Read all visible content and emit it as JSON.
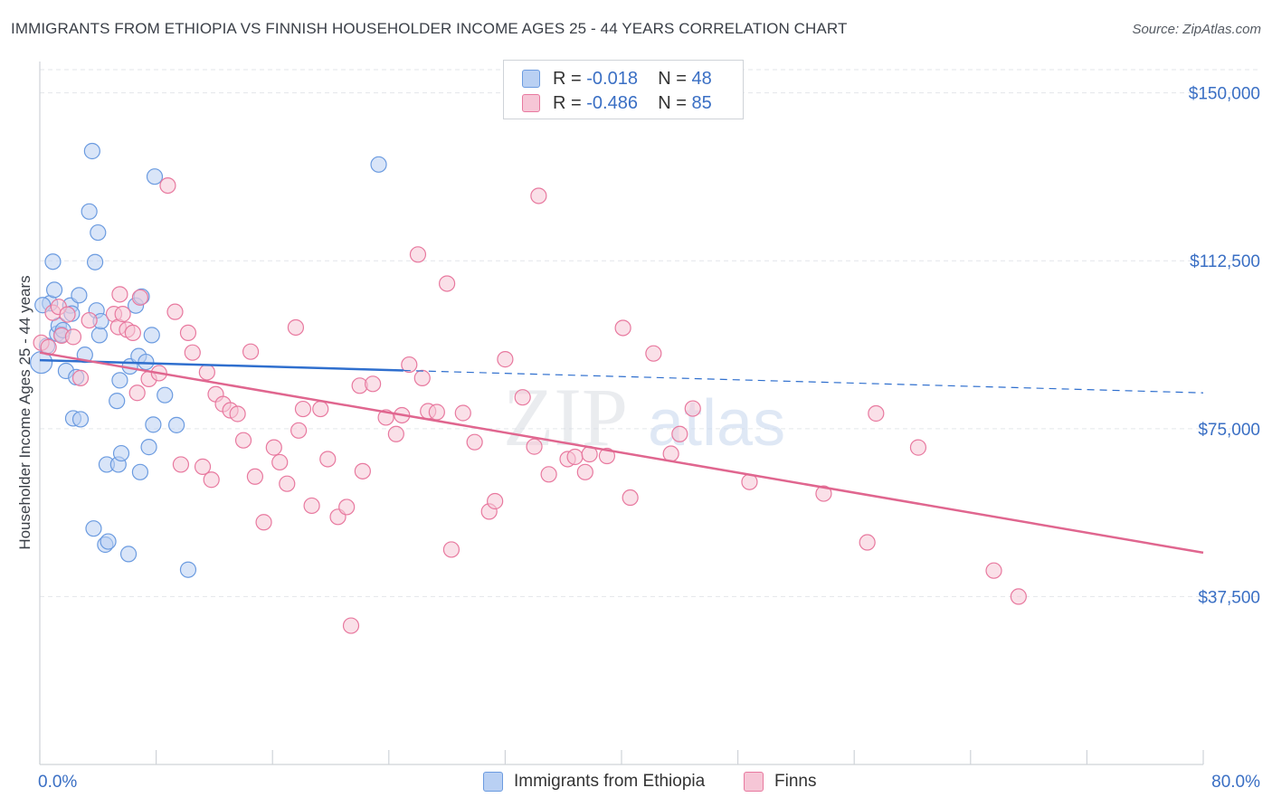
{
  "title": "IMMIGRANTS FROM ETHIOPIA VS FINNISH HOUSEHOLDER INCOME AGES 25 - 44 YEARS CORRELATION CHART",
  "source": "Source: ZipAtlas.com",
  "watermark": {
    "zip": "ZIP",
    "atlas": "atlas"
  },
  "legend": {
    "rows": [
      {
        "r_label": "R =",
        "r_value": "-0.018",
        "n_label": "N =",
        "n_value": "48"
      },
      {
        "r_label": "R =",
        "r_value": "-0.486",
        "n_label": "N =",
        "n_value": "85"
      }
    ],
    "bottom": [
      {
        "label": "Immigrants from Ethiopia"
      },
      {
        "label": "Finns"
      }
    ]
  },
  "chart_data": {
    "type": "scatter",
    "title": "IMMIGRANTS FROM ETHIOPIA VS FINNISH HOUSEHOLDER INCOME AGES 25 - 44 YEARS CORRELATION CHART",
    "xlabel": "",
    "ylabel": "Householder Income Ages 25 - 44 years",
    "xlim": [
      0,
      80
    ],
    "ylim": [
      0,
      157000
    ],
    "x_tick_labels": {
      "min": "0.0%",
      "max": "80.0%"
    },
    "y_ticks": [
      {
        "value": 150000,
        "label": "$150,000"
      },
      {
        "value": 112500,
        "label": "$112,500"
      },
      {
        "value": 75000,
        "label": "$75,000"
      },
      {
        "value": 37500,
        "label": "$37,500"
      }
    ],
    "grid": true,
    "series": [
      {
        "name": "Immigrants from Ethiopia",
        "color": "#6b9be0",
        "fill": "#b9d0f3",
        "R": -0.018,
        "N": 48,
        "trend": {
          "x0": 0.0,
          "y0": 90300,
          "x1": 25.0,
          "y1": 88000,
          "dash_x1": 80.0,
          "dash_y1": 83000
        },
        "points": [
          [
            0.1,
            89.8
          ],
          [
            0.5,
            93.5
          ],
          [
            0.7,
            103.0
          ],
          [
            0.9,
            112.3
          ],
          [
            1.0,
            106.0
          ],
          [
            1.2,
            96.2
          ],
          [
            1.3,
            98.0
          ],
          [
            1.5,
            96.0
          ],
          [
            1.6,
            97.0
          ],
          [
            1.8,
            87.9
          ],
          [
            2.1,
            102.5
          ],
          [
            2.2,
            100.7
          ],
          [
            2.3,
            77.3
          ],
          [
            2.5,
            86.5
          ],
          [
            2.7,
            104.8
          ],
          [
            2.8,
            77.1
          ],
          [
            3.1,
            91.5
          ],
          [
            3.4,
            123.5
          ],
          [
            3.6,
            137.0
          ],
          [
            3.7,
            52.7
          ],
          [
            3.8,
            112.2
          ],
          [
            3.9,
            101.4
          ],
          [
            4.0,
            118.8
          ],
          [
            4.1,
            95.9
          ],
          [
            4.2,
            99.0
          ],
          [
            4.5,
            49.1
          ],
          [
            4.6,
            67.0
          ],
          [
            4.7,
            49.8
          ],
          [
            5.3,
            81.2
          ],
          [
            5.4,
            67.0
          ],
          [
            5.5,
            85.8
          ],
          [
            5.6,
            69.5
          ],
          [
            6.1,
            47.0
          ],
          [
            6.2,
            88.9
          ],
          [
            6.6,
            102.5
          ],
          [
            6.8,
            91.2
          ],
          [
            6.9,
            65.3
          ],
          [
            7.0,
            104.5
          ],
          [
            7.3,
            89.9
          ],
          [
            7.5,
            70.9
          ],
          [
            7.7,
            95.9
          ],
          [
            7.8,
            75.9
          ],
          [
            7.9,
            131.3
          ],
          [
            8.6,
            82.5
          ],
          [
            9.4,
            75.8
          ],
          [
            10.2,
            43.5
          ],
          [
            23.3,
            134.0
          ],
          [
            0.2,
            102.6
          ]
        ]
      },
      {
        "name": "Finns",
        "color": "#e8799f",
        "fill": "#f6c6d6",
        "R": -0.486,
        "N": 85,
        "trend": {
          "x0": 0.0,
          "y0": 92000,
          "x1": 80.0,
          "y1": 47300
        },
        "points": [
          [
            0.1,
            94.2
          ],
          [
            0.6,
            93.2
          ],
          [
            0.9,
            100.9
          ],
          [
            1.3,
            102.2
          ],
          [
            1.5,
            95.8
          ],
          [
            1.9,
            100.5
          ],
          [
            2.3,
            95.5
          ],
          [
            2.8,
            86.3
          ],
          [
            3.4,
            99.2
          ],
          [
            5.1,
            100.6
          ],
          [
            5.4,
            97.7
          ],
          [
            5.5,
            105.0
          ],
          [
            5.7,
            100.6
          ],
          [
            6.0,
            97.1
          ],
          [
            6.4,
            96.4
          ],
          [
            6.7,
            83.0
          ],
          [
            6.9,
            104.3
          ],
          [
            7.5,
            86.1
          ],
          [
            8.2,
            87.4
          ],
          [
            8.8,
            129.3
          ],
          [
            9.3,
            101.1
          ],
          [
            9.7,
            67.0
          ],
          [
            10.2,
            96.4
          ],
          [
            10.5,
            92.0
          ],
          [
            11.2,
            66.5
          ],
          [
            11.5,
            87.6
          ],
          [
            11.8,
            63.6
          ],
          [
            12.1,
            82.7
          ],
          [
            12.6,
            80.5
          ],
          [
            13.1,
            79.1
          ],
          [
            13.6,
            78.3
          ],
          [
            14.0,
            72.4
          ],
          [
            14.5,
            92.2
          ],
          [
            14.8,
            64.3
          ],
          [
            15.4,
            54.1
          ],
          [
            16.1,
            70.8
          ],
          [
            16.5,
            67.5
          ],
          [
            17.0,
            62.7
          ],
          [
            17.6,
            97.6
          ],
          [
            17.8,
            74.6
          ],
          [
            18.1,
            79.4
          ],
          [
            18.7,
            57.8
          ],
          [
            19.3,
            79.4
          ],
          [
            19.8,
            68.2
          ],
          [
            20.5,
            55.3
          ],
          [
            21.1,
            57.5
          ],
          [
            21.4,
            31.0
          ],
          [
            22.0,
            84.6
          ],
          [
            22.2,
            65.5
          ],
          [
            22.9,
            85.0
          ],
          [
            23.8,
            77.5
          ],
          [
            24.5,
            73.8
          ],
          [
            24.9,
            78.0
          ],
          [
            25.4,
            89.3
          ],
          [
            26.0,
            113.9
          ],
          [
            26.3,
            86.3
          ],
          [
            26.7,
            78.9
          ],
          [
            27.3,
            78.7
          ],
          [
            28.0,
            107.4
          ],
          [
            28.3,
            48.0
          ],
          [
            29.1,
            78.5
          ],
          [
            29.9,
            72.0
          ],
          [
            30.9,
            56.5
          ],
          [
            31.3,
            58.8
          ],
          [
            32.0,
            90.5
          ],
          [
            33.2,
            82.0
          ],
          [
            34.0,
            71.0
          ],
          [
            34.3,
            127.0
          ],
          [
            35.0,
            64.8
          ],
          [
            36.3,
            68.2
          ],
          [
            36.8,
            68.7
          ],
          [
            37.5,
            65.3
          ],
          [
            37.8,
            69.3
          ],
          [
            39.0,
            68.9
          ],
          [
            40.1,
            97.5
          ],
          [
            40.6,
            59.6
          ],
          [
            42.2,
            91.8
          ],
          [
            43.4,
            69.4
          ],
          [
            44.0,
            73.8
          ],
          [
            44.9,
            79.5
          ],
          [
            48.8,
            63.1
          ],
          [
            53.9,
            60.5
          ],
          [
            56.9,
            49.6
          ],
          [
            57.5,
            78.4
          ],
          [
            60.4,
            70.8
          ],
          [
            65.6,
            43.3
          ],
          [
            67.3,
            37.5
          ]
        ]
      }
    ]
  }
}
